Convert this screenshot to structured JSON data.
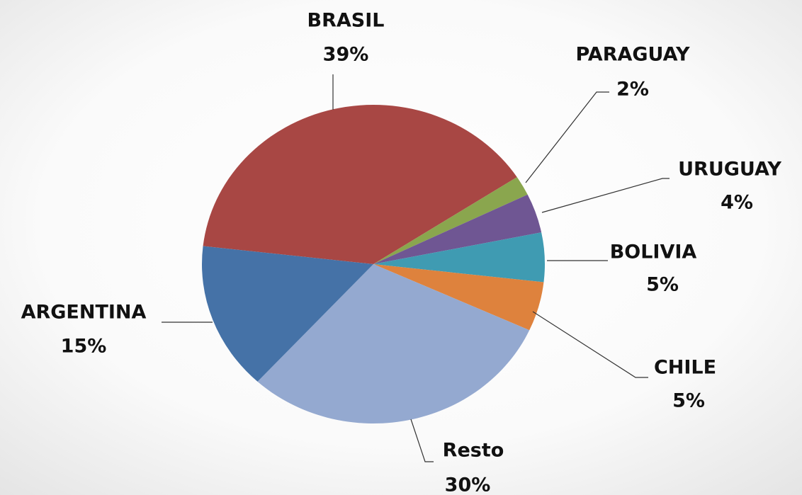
{
  "chart_data": {
    "type": "pie",
    "categories": [
      "BRASIL",
      "PARAGUAY",
      "URUGUAY",
      "BOLIVIA",
      "CHILE",
      "Resto",
      "ARGENTINA"
    ],
    "values": [
      39,
      2,
      4,
      5,
      5,
      30,
      15
    ],
    "value_labels": [
      "39%",
      "2%",
      "4%",
      "5%",
      "5%",
      "30%",
      "15%"
    ],
    "colors": [
      "#a84744",
      "#8aa64e",
      "#6f5693",
      "#3f9bb2",
      "#de823d",
      "#94a9d0",
      "#4572a7"
    ]
  }
}
